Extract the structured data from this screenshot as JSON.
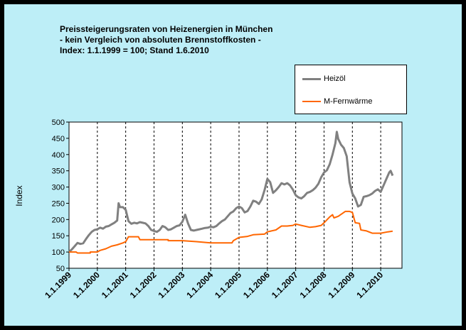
{
  "title_lines": [
    "Preissteigerungsraten von Heizenergien in München",
    "- kein Vergleich von absoluten Brennstoffkosten -",
    "Index: 1.1.1999 = 100; Stand 1.6.2010"
  ],
  "colors": {
    "background": "#bdeef7",
    "heizoel": "#808080",
    "fernwaerme": "#ff6600"
  },
  "chart_data": {
    "type": "line",
    "title": "Preissteigerungsraten von Heizenergien in München",
    "ylabel": "Index",
    "xlabel": "",
    "ylim": [
      50,
      500
    ],
    "yticks": [
      50,
      100,
      150,
      200,
      250,
      300,
      350,
      400,
      450,
      500
    ],
    "xlim": [
      1999.0,
      2010.75
    ],
    "xticks": [
      {
        "x": 1999,
        "label": "1.1.1999"
      },
      {
        "x": 2000,
        "label": "1.1.2000"
      },
      {
        "x": 2001,
        "label": "1.1.2001"
      },
      {
        "x": 2002,
        "label": "1.1.2002"
      },
      {
        "x": 2003,
        "label": "1.1.2003"
      },
      {
        "x": 2004,
        "label": "1.1.2004"
      },
      {
        "x": 2005,
        "label": "1.1.2005"
      },
      {
        "x": 2006,
        "label": "1.1.2006"
      },
      {
        "x": 2007,
        "label": "1.1.2007"
      },
      {
        "x": 2008,
        "label": "1.1.2008"
      },
      {
        "x": 2009,
        "label": "1.1.2009"
      },
      {
        "x": 2010,
        "label": "1.1.2010"
      }
    ],
    "grid": "vertical-dashed",
    "legend_position": "top-right",
    "series": [
      {
        "name": "Heizöl",
        "color": "#808080",
        "points": [
          [
            1999.0,
            100
          ],
          [
            1999.1,
            108
          ],
          [
            1999.2,
            118
          ],
          [
            1999.3,
            128
          ],
          [
            1999.4,
            125
          ],
          [
            1999.5,
            127
          ],
          [
            1999.6,
            140
          ],
          [
            1999.7,
            152
          ],
          [
            1999.8,
            162
          ],
          [
            1999.9,
            168
          ],
          [
            2000.0,
            170
          ],
          [
            2000.1,
            175
          ],
          [
            2000.2,
            172
          ],
          [
            2000.3,
            178
          ],
          [
            2000.4,
            180
          ],
          [
            2000.5,
            185
          ],
          [
            2000.6,
            190
          ],
          [
            2000.7,
            197
          ],
          [
            2000.75,
            250
          ],
          [
            2000.8,
            238
          ],
          [
            2000.9,
            238
          ],
          [
            2001.0,
            230
          ],
          [
            2001.1,
            195
          ],
          [
            2001.2,
            187
          ],
          [
            2001.3,
            190
          ],
          [
            2001.4,
            188
          ],
          [
            2001.5,
            192
          ],
          [
            2001.6,
            190
          ],
          [
            2001.7,
            188
          ],
          [
            2001.8,
            180
          ],
          [
            2001.9,
            168
          ],
          [
            2002.0,
            165
          ],
          [
            2002.1,
            162
          ],
          [
            2002.2,
            168
          ],
          [
            2002.3,
            180
          ],
          [
            2002.4,
            176
          ],
          [
            2002.5,
            168
          ],
          [
            2002.6,
            170
          ],
          [
            2002.7,
            175
          ],
          [
            2002.8,
            180
          ],
          [
            2002.9,
            182
          ],
          [
            2003.0,
            193
          ],
          [
            2003.1,
            215
          ],
          [
            2003.2,
            188
          ],
          [
            2003.3,
            168
          ],
          [
            2003.4,
            166
          ],
          [
            2003.5,
            168
          ],
          [
            2003.6,
            170
          ],
          [
            2003.7,
            172
          ],
          [
            2003.8,
            174
          ],
          [
            2003.9,
            175
          ],
          [
            2004.0,
            178
          ],
          [
            2004.1,
            176
          ],
          [
            2004.2,
            180
          ],
          [
            2004.3,
            188
          ],
          [
            2004.4,
            195
          ],
          [
            2004.5,
            200
          ],
          [
            2004.6,
            210
          ],
          [
            2004.7,
            220
          ],
          [
            2004.8,
            225
          ],
          [
            2004.9,
            235
          ],
          [
            2005.0,
            240
          ],
          [
            2005.1,
            235
          ],
          [
            2005.2,
            222
          ],
          [
            2005.3,
            226
          ],
          [
            2005.4,
            240
          ],
          [
            2005.5,
            258
          ],
          [
            2005.6,
            255
          ],
          [
            2005.7,
            248
          ],
          [
            2005.8,
            262
          ],
          [
            2005.9,
            290
          ],
          [
            2006.0,
            325
          ],
          [
            2006.1,
            315
          ],
          [
            2006.2,
            282
          ],
          [
            2006.3,
            290
          ],
          [
            2006.4,
            300
          ],
          [
            2006.5,
            312
          ],
          [
            2006.6,
            308
          ],
          [
            2006.7,
            312
          ],
          [
            2006.8,
            305
          ],
          [
            2006.9,
            292
          ],
          [
            2007.0,
            275
          ],
          [
            2007.1,
            268
          ],
          [
            2007.2,
            265
          ],
          [
            2007.3,
            272
          ],
          [
            2007.4,
            282
          ],
          [
            2007.5,
            285
          ],
          [
            2007.6,
            290
          ],
          [
            2007.7,
            298
          ],
          [
            2007.8,
            310
          ],
          [
            2007.9,
            330
          ],
          [
            2008.0,
            345
          ],
          [
            2008.1,
            352
          ],
          [
            2008.2,
            370
          ],
          [
            2008.3,
            400
          ],
          [
            2008.4,
            435
          ],
          [
            2008.45,
            470
          ],
          [
            2008.5,
            448
          ],
          [
            2008.6,
            430
          ],
          [
            2008.7,
            420
          ],
          [
            2008.8,
            395
          ],
          [
            2008.9,
            315
          ],
          [
            2009.0,
            280
          ],
          [
            2009.1,
            265
          ],
          [
            2009.2,
            240
          ],
          [
            2009.3,
            245
          ],
          [
            2009.4,
            270
          ],
          [
            2009.5,
            272
          ],
          [
            2009.6,
            275
          ],
          [
            2009.7,
            280
          ],
          [
            2009.8,
            288
          ],
          [
            2009.9,
            293
          ],
          [
            2010.0,
            285
          ],
          [
            2010.1,
            305
          ],
          [
            2010.2,
            325
          ],
          [
            2010.3,
            345
          ],
          [
            2010.35,
            350
          ],
          [
            2010.42,
            335
          ]
        ]
      },
      {
        "name": "M-Fernwärme",
        "color": "#ff6600",
        "points": [
          [
            1999.0,
            100
          ],
          [
            1999.25,
            100
          ],
          [
            1999.3,
            97
          ],
          [
            1999.75,
            97
          ],
          [
            1999.75,
            100
          ],
          [
            2000.0,
            100
          ],
          [
            2000.1,
            105
          ],
          [
            2000.3,
            110
          ],
          [
            2000.5,
            118
          ],
          [
            2000.7,
            122
          ],
          [
            2000.9,
            128
          ],
          [
            2001.0,
            132
          ],
          [
            2001.1,
            147
          ],
          [
            2001.45,
            147
          ],
          [
            2001.5,
            138
          ],
          [
            2002.5,
            138
          ],
          [
            2002.5,
            135
          ],
          [
            2003.0,
            135
          ],
          [
            2003.5,
            132
          ],
          [
            2004.0,
            128
          ],
          [
            2004.75,
            128
          ],
          [
            2004.8,
            135
          ],
          [
            2005.0,
            145
          ],
          [
            2005.3,
            148
          ],
          [
            2005.5,
            153
          ],
          [
            2005.9,
            155
          ],
          [
            2006.0,
            162
          ],
          [
            2006.3,
            168
          ],
          [
            2006.5,
            180
          ],
          [
            2006.7,
            180
          ],
          [
            2006.9,
            182
          ],
          [
            2007.0,
            186
          ],
          [
            2007.2,
            182
          ],
          [
            2007.5,
            176
          ],
          [
            2007.7,
            178
          ],
          [
            2007.9,
            182
          ],
          [
            2008.0,
            190
          ],
          [
            2008.2,
            208
          ],
          [
            2008.3,
            215
          ],
          [
            2008.35,
            205
          ],
          [
            2008.5,
            210
          ],
          [
            2008.75,
            225
          ],
          [
            2008.9,
            225
          ],
          [
            2009.0,
            222
          ],
          [
            2009.1,
            190
          ],
          [
            2009.25,
            188
          ],
          [
            2009.3,
            168
          ],
          [
            2009.5,
            165
          ],
          [
            2009.7,
            158
          ],
          [
            2009.9,
            158
          ],
          [
            2010.0,
            158
          ],
          [
            2010.25,
            162
          ],
          [
            2010.42,
            164
          ]
        ]
      }
    ]
  }
}
